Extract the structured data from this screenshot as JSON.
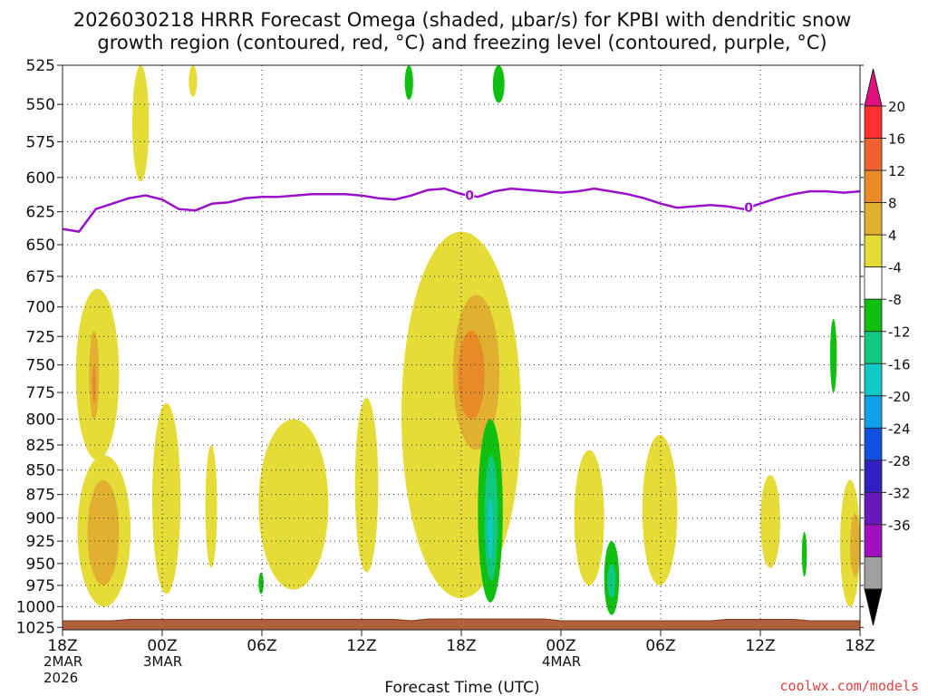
{
  "chart_data": {
    "type": "contour-timeheight",
    "title_line1": "2026030218 HRRR Forecast Omega (shaded, μbar/s) for KPBI with dendritic snow",
    "title_line2": "growth region (contoured, red, °C) and freezing level (contoured, purple, °C)",
    "xlabel": "Forecast Time (UTC)",
    "credit": "coolwx.com/models",
    "x_range_hours": [
      0,
      48
    ],
    "y_levels": [
      525,
      550,
      575,
      600,
      625,
      650,
      675,
      700,
      725,
      750,
      775,
      800,
      825,
      850,
      875,
      900,
      925,
      950,
      975,
      1000,
      1025
    ],
    "y_tick_labels": [
      "525",
      "550",
      "575",
      "600",
      "625",
      "650",
      "675",
      "700",
      "725",
      "750",
      "775",
      "800",
      "825",
      "850",
      "875",
      "900",
      "925",
      "950",
      "975",
      "1000",
      "1025"
    ],
    "x_ticks": [
      {
        "hour": 0,
        "label": "18Z",
        "sub1": "2MAR",
        "sub2": "2026"
      },
      {
        "hour": 6,
        "label": "00Z",
        "sub1": "3MAR",
        "sub2": ""
      },
      {
        "hour": 12,
        "label": "06Z",
        "sub1": "",
        "sub2": ""
      },
      {
        "hour": 18,
        "label": "12Z",
        "sub1": "",
        "sub2": ""
      },
      {
        "hour": 24,
        "label": "18Z",
        "sub1": "",
        "sub2": ""
      },
      {
        "hour": 30,
        "label": "00Z",
        "sub1": "4MAR",
        "sub2": ""
      },
      {
        "hour": 36,
        "label": "06Z",
        "sub1": "",
        "sub2": ""
      },
      {
        "hour": 42,
        "label": "12Z",
        "sub1": "",
        "sub2": ""
      },
      {
        "hour": 48,
        "label": "18Z",
        "sub1": "",
        "sub2": ""
      }
    ],
    "colorbar": {
      "labels": [
        "20",
        "16",
        "12",
        "8",
        "4",
        "-4",
        "-8",
        "-12",
        "-16",
        "-20",
        "-24",
        "-28",
        "-32",
        "-36"
      ],
      "colors": [
        "#ff3030",
        "#f06030",
        "#e88a28",
        "#e2b030",
        "#e6dc38",
        "#ffffff",
        "#10c010",
        "#10c880",
        "#10c8c8",
        "#10a0e8",
        "#1050e0",
        "#3020c0",
        "#6818b8",
        "#a010c0",
        "#a0a0a0"
      ],
      "top_color": "#e0107c",
      "bottom_color": "#000000"
    },
    "freezing_level": {
      "label": "0",
      "points": [
        [
          0,
          638
        ],
        [
          1,
          640
        ],
        [
          2,
          623
        ],
        [
          3,
          619
        ],
        [
          4,
          615
        ],
        [
          5,
          613
        ],
        [
          6,
          616
        ],
        [
          7,
          623
        ],
        [
          8,
          624
        ],
        [
          9,
          619
        ],
        [
          10,
          618
        ],
        [
          11,
          615
        ],
        [
          12,
          614
        ],
        [
          13,
          614
        ],
        [
          14,
          613
        ],
        [
          15,
          612
        ],
        [
          16,
          612
        ],
        [
          17,
          612
        ],
        [
          18,
          613
        ],
        [
          19,
          615
        ],
        [
          20,
          616
        ],
        [
          21,
          613
        ],
        [
          22,
          609
        ],
        [
          23,
          608
        ],
        [
          24,
          612
        ],
        [
          25,
          614
        ],
        [
          26,
          610
        ],
        [
          27,
          608
        ],
        [
          28,
          609
        ],
        [
          29,
          610
        ],
        [
          30,
          611
        ],
        [
          31,
          610
        ],
        [
          32,
          608
        ],
        [
          33,
          610
        ],
        [
          34,
          612
        ],
        [
          35,
          615
        ],
        [
          36,
          619
        ],
        [
          37,
          622
        ],
        [
          38,
          621
        ],
        [
          39,
          620
        ],
        [
          40,
          621
        ],
        [
          41,
          623
        ],
        [
          42,
          619
        ],
        [
          43,
          615
        ],
        [
          44,
          612
        ],
        [
          45,
          610
        ],
        [
          46,
          610
        ],
        [
          47,
          611
        ],
        [
          48,
          610
        ]
      ],
      "label_hours": [
        24.5,
        41.3
      ]
    },
    "omega_features": [
      {
        "level": "4",
        "color": "#e6dc38",
        "t0": 4.2,
        "t1": 5.2,
        "p0": 525,
        "p1": 603
      },
      {
        "level": "4",
        "color": "#e6dc38",
        "t0": 7.6,
        "t1": 8.1,
        "p0": 525,
        "p1": 545
      },
      {
        "level": "-4",
        "color": "#10c010",
        "t0": 20.6,
        "t1": 21.1,
        "p0": 525,
        "p1": 547
      },
      {
        "level": "-4",
        "color": "#10c010",
        "t0": 25.9,
        "t1": 26.6,
        "p0": 525,
        "p1": 549
      },
      {
        "level": "4",
        "color": "#e6dc38",
        "t0": 0.8,
        "t1": 3.4,
        "p0": 685,
        "p1": 840
      },
      {
        "level": "8",
        "color": "#e2b030",
        "t0": 1.6,
        "t1": 2.2,
        "p0": 720,
        "p1": 800
      },
      {
        "level": "12",
        "color": "#e88a28",
        "t0": 1.8,
        "t1": 2.0,
        "p0": 750,
        "p1": 785
      },
      {
        "level": "4",
        "color": "#e6dc38",
        "t0": 0.9,
        "t1": 4.1,
        "p0": 835,
        "p1": 1000
      },
      {
        "level": "8",
        "color": "#e2b030",
        "t0": 1.5,
        "t1": 3.4,
        "p0": 860,
        "p1": 975
      },
      {
        "level": "4",
        "color": "#e6dc38",
        "t0": 5.4,
        "t1": 7.1,
        "p0": 785,
        "p1": 985
      },
      {
        "level": "4",
        "color": "#e6dc38",
        "t0": 8.6,
        "t1": 9.3,
        "p0": 825,
        "p1": 955
      },
      {
        "level": "-4",
        "color": "#10c010",
        "t0": 11.8,
        "t1": 12.1,
        "p0": 960,
        "p1": 985
      },
      {
        "level": "4",
        "color": "#e6dc38",
        "t0": 11.8,
        "t1": 16.0,
        "p0": 800,
        "p1": 980
      },
      {
        "level": "4",
        "color": "#e6dc38",
        "t0": 17.6,
        "t1": 19.0,
        "p0": 780,
        "p1": 960
      },
      {
        "level": "4",
        "color": "#e6dc38",
        "t0": 20.4,
        "t1": 27.6,
        "p0": 640,
        "p1": 990
      },
      {
        "level": "8",
        "color": "#e2b030",
        "t0": 23.5,
        "t1": 26.3,
        "p0": 690,
        "p1": 830
      },
      {
        "level": "12",
        "color": "#e88a28",
        "t0": 23.8,
        "t1": 25.4,
        "p0": 720,
        "p1": 800
      },
      {
        "level": "-4",
        "color": "#10c010",
        "t0": 25.0,
        "t1": 26.5,
        "p0": 800,
        "p1": 995
      },
      {
        "level": "-8",
        "color": "#10c880",
        "t0": 25.4,
        "t1": 26.2,
        "p0": 835,
        "p1": 970
      },
      {
        "level": "-12",
        "color": "#10c8c8",
        "t0": 25.6,
        "t1": 25.9,
        "p0": 880,
        "p1": 945
      },
      {
        "level": "4",
        "color": "#e6dc38",
        "t0": 30.8,
        "t1": 32.6,
        "p0": 830,
        "p1": 975
      },
      {
        "level": "-4",
        "color": "#10c010",
        "t0": 32.6,
        "t1": 33.5,
        "p0": 925,
        "p1": 1010
      },
      {
        "level": "-8",
        "color": "#10c880",
        "t0": 32.8,
        "t1": 33.3,
        "p0": 950,
        "p1": 990
      },
      {
        "level": "4",
        "color": "#e6dc38",
        "t0": 34.9,
        "t1": 37.0,
        "p0": 815,
        "p1": 975
      },
      {
        "level": "4",
        "color": "#e6dc38",
        "t0": 42.0,
        "t1": 43.2,
        "p0": 855,
        "p1": 955
      },
      {
        "level": "-4",
        "color": "#10c010",
        "t0": 44.5,
        "t1": 44.8,
        "p0": 915,
        "p1": 965
      },
      {
        "level": "-4",
        "color": "#10c010",
        "t0": 46.2,
        "t1": 46.6,
        "p0": 710,
        "p1": 775
      },
      {
        "level": "4",
        "color": "#e6dc38",
        "t0": 46.8,
        "t1": 48.0,
        "p0": 860,
        "p1": 1000
      },
      {
        "level": "8",
        "color": "#e2b030",
        "t0": 47.4,
        "t1": 48.0,
        "p0": 895,
        "p1": 965
      }
    ]
  }
}
